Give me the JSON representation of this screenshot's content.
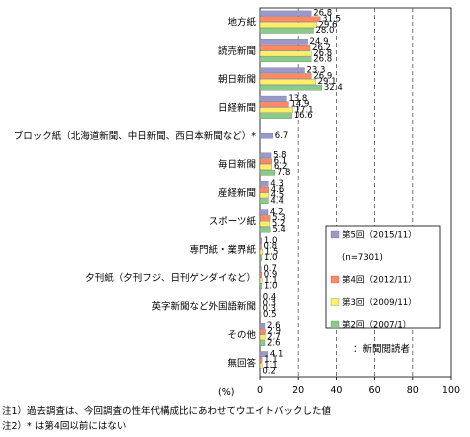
{
  "chart_data": {
    "type": "bar",
    "orientation": "horizontal",
    "categories": [
      "地方紙",
      "読売新聞",
      "朝日新聞",
      "日経新聞",
      "ブロック紙（北海道新聞、中日新聞、西日本新聞など）*",
      "毎日新聞",
      "産経新聞",
      "スポーツ紙",
      "専門紙・業界紙",
      "夕刊紙（夕刊フジ、日刊ゲンダイなど）",
      "英字新聞など外国語新聞",
      "その他",
      "無回答"
    ],
    "series": [
      {
        "name": "第5回（2015/11）",
        "color": "#9999cc",
        "values": [
          26.8,
          24.9,
          23.3,
          13.8,
          6.7,
          5.8,
          4.3,
          4.2,
          1.0,
          0.7,
          0.4,
          2.6,
          4.1
        ]
      },
      {
        "name": "第4回（2012/11）",
        "color": "#ff8866",
        "values": [
          31.5,
          26.2,
          26.9,
          14.9,
          null,
          6.1,
          4.6,
          5.3,
          0.8,
          0.9,
          0.3,
          2.9,
          1.1
        ]
      },
      {
        "name": "第3回（2009/11）",
        "color": "#ffee66",
        "values": [
          29.6,
          26.8,
          29.1,
          17.1,
          null,
          6.2,
          4.5,
          5.2,
          1.5,
          1.1,
          0.3,
          2.7,
          1.1
        ]
      },
      {
        "name": "第2回（2007/1）",
        "color": "#88cc88",
        "values": [
          28.0,
          26.8,
          32.4,
          16.6,
          null,
          7.8,
          4.4,
          5.4,
          1.0,
          1.0,
          0.5,
          2.6,
          0.2
        ]
      }
    ],
    "value_labels": [
      [
        "26.8",
        "31.5",
        "29.6",
        "28.0"
      ],
      [
        "24.9",
        "26.2",
        "26.8",
        "26.8"
      ],
      [
        "23.3",
        "26.9",
        "29.1",
        "32.4"
      ],
      [
        "13.8",
        "14.9",
        "17.1",
        "16.6"
      ],
      [
        "6.7",
        "",
        "",
        ""
      ],
      [
        "5.8",
        "6.1",
        "6.2",
        "7.8"
      ],
      [
        "4.3",
        "4.6",
        "4.5",
        "4.4"
      ],
      [
        "4.2",
        "5.3",
        "5.2",
        "5.4"
      ],
      [
        "1.0",
        "0.8",
        "1.5",
        "1.0"
      ],
      [
        "0.7",
        "0.9",
        "1.1",
        "1.0"
      ],
      [
        "0.4",
        "0.3",
        "0.3",
        "0.5"
      ],
      [
        "2.6",
        "2.9",
        "2.7",
        "2.6"
      ],
      [
        "4.1",
        "1.1",
        "1.1",
        "0.2"
      ]
    ],
    "xlim": [
      0,
      100
    ],
    "xticks": [
      0,
      20,
      40,
      60,
      80,
      100
    ],
    "tick_labels": [
      "0",
      "20",
      "40",
      "60",
      "80",
      "100"
    ],
    "xunit": "(%)",
    "legend": {
      "position": "right",
      "sample_note": "(n=7301)"
    },
    "base_note": "：新聞閲読者",
    "gridlines": "dashed-vertical"
  },
  "notes": [
    "注1）過去調査は、今回調査の性年代構成比にあわせてウエイトバックした値",
    "注2）* は第4回以前にはない"
  ]
}
